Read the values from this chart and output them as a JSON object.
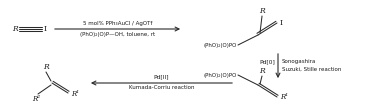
{
  "bg_color": "#ffffff",
  "text_color": "#1a1a1a",
  "line_color": "#2a2a2a",
  "top_arrow_label1": "5 mol% PPh₃AuCl / AgOTf",
  "top_arrow_label2": "(PhO)₂(O)P—OH, toluene, rt",
  "right_arrow_label1": "Pd[0]",
  "right_arrow_label2a": "Sonogashira",
  "right_arrow_label2b": "Suzuki, Stille reaction",
  "bottom_arrow_label1": "Pd[II]",
  "bottom_arrow_label2": "Kumada-Corriu reaction",
  "pho_group": "(PhO)₂(O)PO",
  "label_R": "R",
  "label_I": "I",
  "label_R1": "R¹",
  "label_R2": "R²"
}
